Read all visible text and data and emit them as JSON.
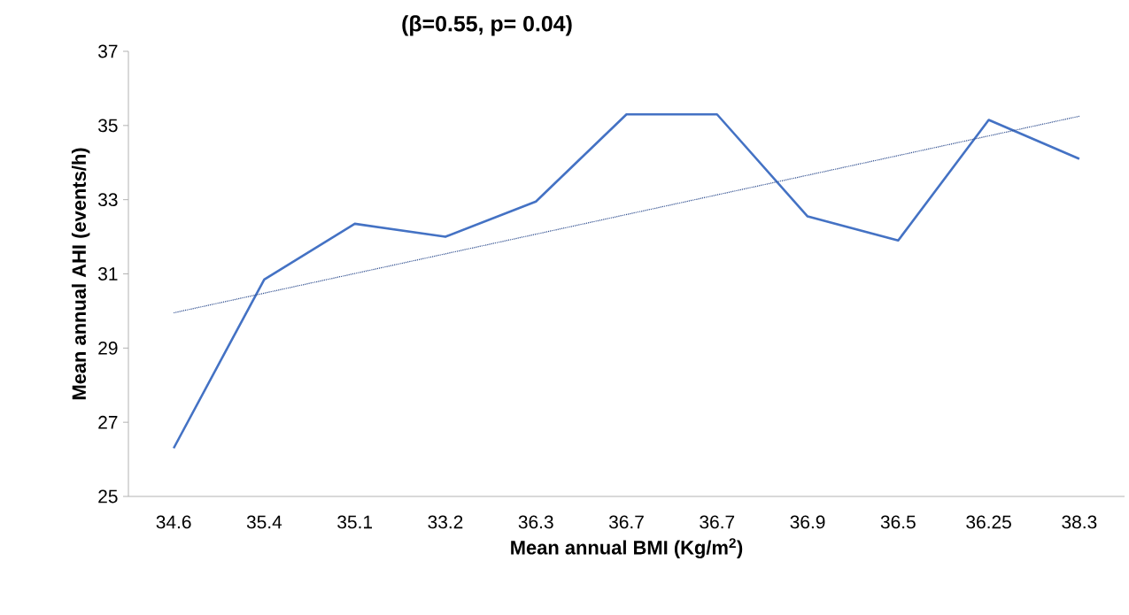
{
  "chart_data": {
    "type": "line",
    "title": "(β=0.55, p= 0.04)",
    "xlabel": "Mean annual BMI (Kg/m$^{2}$)",
    "ylabel": "Mean  annual AHI (events/h)",
    "categories": [
      "34.6",
      "35.4",
      "35.1",
      "33.2",
      "36.3",
      "36.7",
      "36.7",
      "36.9",
      "36.5",
      "36.25",
      "38.3"
    ],
    "series": [
      {
        "color": "#4472c4",
        "line_style": "solid",
        "values": [
          26.3,
          30.85,
          32.35,
          32.0,
          32.95,
          35.3,
          35.3,
          32.55,
          31.9,
          35.15,
          34.1
        ]
      },
      {
        "type": "line",
        "color": "#2f4e8f",
        "line_style": "dotted",
        "values": [
          29.95,
          30.48,
          31.01,
          31.54,
          32.07,
          32.6,
          33.13,
          33.66,
          34.19,
          34.72,
          35.25
        ]
      }
    ],
    "ylim": [
      25,
      37
    ],
    "yticks": [
      25,
      27,
      29,
      31,
      33,
      35,
      37
    ],
    "marker": "none"
  }
}
